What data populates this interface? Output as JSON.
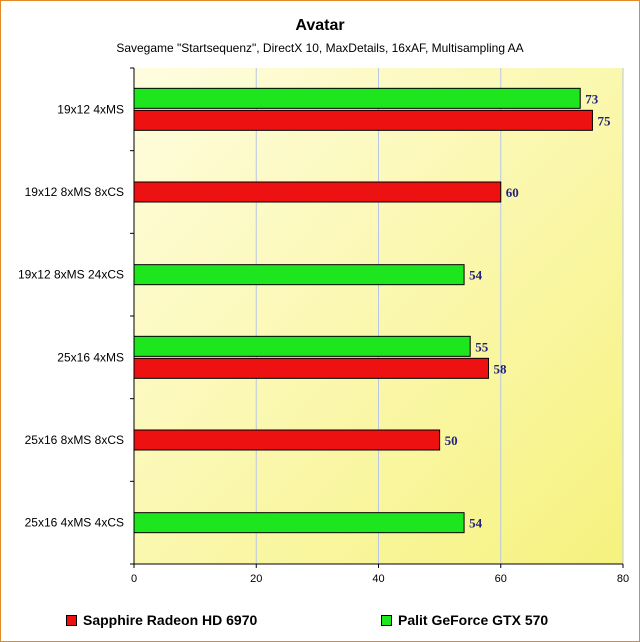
{
  "chart_data": {
    "type": "bar",
    "orientation": "horizontal",
    "title": "Avatar",
    "subtitle": "Savegame \"Startsequenz\", DirectX 10, MaxDetails, 16xAF, Multisampling AA",
    "categories": [
      "19x12 4xMS",
      "19x12 8xMS 8xCS",
      "19x12 8xMS 24xCS",
      "25x16 4xMS",
      "25x16 8xMS 8xCS",
      "25x16 4xMS 4xCS"
    ],
    "series": [
      {
        "name": "Palit GeForce GTX 570",
        "color": "#1ee61e",
        "values": [
          73,
          null,
          54,
          55,
          null,
          54
        ]
      },
      {
        "name": "Sapphire Radeon HD 6970",
        "color": "#ee1111",
        "values": [
          75,
          60,
          null,
          58,
          50,
          null
        ]
      }
    ],
    "xlim": [
      0,
      80
    ],
    "xticks": [
      0,
      20,
      40,
      60,
      80
    ],
    "grid": true,
    "legend_position": "bottom",
    "legend": [
      {
        "name": "Sapphire Radeon HD 6970",
        "color": "#ee1111"
      },
      {
        "name": "Palit GeForce GTX 570",
        "color": "#1ee61e"
      }
    ]
  }
}
